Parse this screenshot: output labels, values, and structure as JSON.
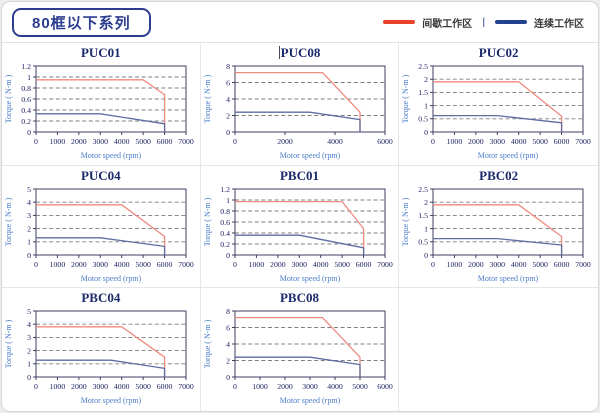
{
  "header": {
    "badge": "80框以下系列",
    "legend": {
      "intermittent": {
        "label": "间歇工作区",
        "color": "#e8432a"
      },
      "separator": "|",
      "continuous": {
        "label": "连续工作区",
        "color": "#24418f"
      }
    }
  },
  "chart_data": [
    {
      "type": "line",
      "title": "PUC01",
      "xlabel": "Motor speed (rpm)",
      "ylabel": "Torque ( N-m )",
      "xlim": [
        0,
        7000
      ],
      "ylim": [
        0,
        1.2
      ],
      "xticks": [
        0,
        1000,
        2000,
        3000,
        4000,
        5000,
        6000,
        7000
      ],
      "yticks": [
        0,
        0.2,
        0.4,
        0.6,
        0.8,
        1,
        1.2
      ],
      "grid": "horizontal-dashed",
      "legend_position": "none",
      "series": [
        {
          "name": "间歇工作区",
          "color": "#ef8a7e",
          "points": [
            [
              0,
              0.95
            ],
            [
              5000,
              0.95
            ],
            [
              6000,
              0.68
            ],
            [
              6000,
              0
            ]
          ]
        },
        {
          "name": "连续工作区",
          "color": "#5c6da2",
          "points": [
            [
              0,
              0.33
            ],
            [
              3000,
              0.33
            ],
            [
              6000,
              0.15
            ],
            [
              6000,
              0
            ]
          ]
        }
      ]
    },
    {
      "type": "line",
      "title": "PUC08",
      "text_cursor_before_title": true,
      "xlabel": "Motor speed (rpm)",
      "ylabel": "Torque ( N-m )",
      "xlim": [
        0,
        6000
      ],
      "ylim": [
        0,
        8
      ],
      "xticks": [
        0,
        2000,
        4000,
        6000
      ],
      "yticks": [
        0,
        2,
        4,
        6,
        8
      ],
      "grid": "horizontal-dashed",
      "legend_position": "none",
      "series": [
        {
          "name": "间歇工作区",
          "color": "#ef8a7e",
          "points": [
            [
              0,
              7.2
            ],
            [
              3500,
              7.2
            ],
            [
              5000,
              2.4
            ],
            [
              5000,
              0
            ]
          ]
        },
        {
          "name": "连续工作区",
          "color": "#5c6da2",
          "points": [
            [
              0,
              2.4
            ],
            [
              3000,
              2.4
            ],
            [
              5000,
              1.5
            ],
            [
              5000,
              0
            ]
          ]
        }
      ]
    },
    {
      "type": "line",
      "title": "PUC02",
      "xlabel": "Motor speed (rpm)",
      "ylabel": "Torque ( N-m )",
      "xlim": [
        0,
        7000
      ],
      "ylim": [
        0,
        2.5
      ],
      "xticks": [
        0,
        1000,
        2000,
        3000,
        4000,
        5000,
        6000,
        7000
      ],
      "yticks": [
        0,
        0.5,
        1,
        1.5,
        2,
        2.5
      ],
      "grid": "horizontal-dashed",
      "legend_position": "none",
      "series": [
        {
          "name": "间歇工作区",
          "color": "#ef8a7e",
          "points": [
            [
              0,
              1.9
            ],
            [
              4000,
              1.9
            ],
            [
              6000,
              0.6
            ],
            [
              6000,
              0
            ]
          ]
        },
        {
          "name": "连续工作区",
          "color": "#5c6da2",
          "points": [
            [
              0,
              0.62
            ],
            [
              3000,
              0.62
            ],
            [
              6000,
              0.35
            ],
            [
              6000,
              0
            ]
          ]
        }
      ]
    },
    {
      "type": "line",
      "title": "PUC04",
      "xlabel": "Motor speed (rpm)",
      "ylabel": "Torque ( N-m )",
      "xlim": [
        0,
        7000
      ],
      "ylim": [
        0,
        5
      ],
      "xticks": [
        0,
        1000,
        2000,
        3000,
        4000,
        5000,
        6000,
        7000
      ],
      "yticks": [
        0,
        1,
        2,
        3,
        4,
        5
      ],
      "grid": "horizontal-dashed",
      "legend_position": "none",
      "series": [
        {
          "name": "间歇工作区",
          "color": "#ef8a7e",
          "points": [
            [
              0,
              3.8
            ],
            [
              4000,
              3.8
            ],
            [
              6000,
              1.4
            ],
            [
              6000,
              0
            ]
          ]
        },
        {
          "name": "连续工作区",
          "color": "#5c6da2",
          "points": [
            [
              0,
              1.3
            ],
            [
              3000,
              1.3
            ],
            [
              6000,
              0.65
            ],
            [
              6000,
              0
            ]
          ]
        }
      ]
    },
    {
      "type": "line",
      "title": "PBC01",
      "xlabel": "Motor speed (rpm)",
      "ylabel": "Torque ( N-m )",
      "xlim": [
        0,
        7000
      ],
      "ylim": [
        0,
        1.2
      ],
      "xticks": [
        0,
        1000,
        2000,
        3000,
        4000,
        5000,
        6000,
        7000
      ],
      "yticks": [
        0,
        0.2,
        0.4,
        0.6,
        0.8,
        1,
        1.2
      ],
      "grid": "horizontal-dashed",
      "legend_position": "none",
      "series": [
        {
          "name": "间歇工作区",
          "color": "#ef8a7e",
          "points": [
            [
              0,
              0.97
            ],
            [
              5000,
              0.97
            ],
            [
              6000,
              0.48
            ],
            [
              6000,
              0
            ]
          ]
        },
        {
          "name": "连续工作区",
          "color": "#5c6da2",
          "points": [
            [
              0,
              0.36
            ],
            [
              3000,
              0.36
            ],
            [
              6000,
              0.13
            ],
            [
              6000,
              0
            ]
          ]
        }
      ]
    },
    {
      "type": "line",
      "title": "PBC02",
      "xlabel": "Motor speed (rpm)",
      "ylabel": "Torque ( N-m )",
      "xlim": [
        0,
        7000
      ],
      "ylim": [
        0,
        2.5
      ],
      "xticks": [
        0,
        1000,
        2000,
        3000,
        4000,
        5000,
        6000,
        7000
      ],
      "yticks": [
        0,
        0.5,
        1,
        1.5,
        2,
        2.5
      ],
      "grid": "horizontal-dashed",
      "legend_position": "none",
      "series": [
        {
          "name": "间歇工作区",
          "color": "#ef8a7e",
          "points": [
            [
              0,
              1.9
            ],
            [
              4000,
              1.9
            ],
            [
              6000,
              0.7
            ],
            [
              6000,
              0
            ]
          ]
        },
        {
          "name": "连续工作区",
          "color": "#5c6da2",
          "points": [
            [
              0,
              0.62
            ],
            [
              3000,
              0.62
            ],
            [
              6000,
              0.38
            ],
            [
              6000,
              0
            ]
          ]
        }
      ]
    },
    {
      "type": "line",
      "title": "PBC04",
      "xlabel": "Motor speed (rpm)",
      "ylabel": "Torque ( N-m )",
      "xlim": [
        0,
        7000
      ],
      "ylim": [
        0,
        5
      ],
      "xticks": [
        0,
        1000,
        2000,
        3000,
        4000,
        5000,
        6000,
        7000
      ],
      "yticks": [
        0,
        1,
        2,
        3,
        4,
        5
      ],
      "grid": "horizontal-dashed",
      "legend_position": "none",
      "series": [
        {
          "name": "间歇工作区",
          "color": "#ef8a7e",
          "points": [
            [
              0,
              3.8
            ],
            [
              4000,
              3.8
            ],
            [
              6000,
              1.5
            ],
            [
              6000,
              0
            ]
          ]
        },
        {
          "name": "连续工作区",
          "color": "#5c6da2",
          "points": [
            [
              0,
              1.27
            ],
            [
              3500,
              1.27
            ],
            [
              6000,
              0.65
            ],
            [
              6000,
              0
            ]
          ]
        }
      ]
    },
    {
      "type": "line",
      "title": "PBC08",
      "xlabel": "Motor speed (rpm)",
      "ylabel": "Torque ( N-m )",
      "xlim": [
        0,
        6000
      ],
      "ylim": [
        0,
        8
      ],
      "xticks": [
        0,
        1000,
        2000,
        3000,
        4000,
        5000,
        6000
      ],
      "yticks": [
        0,
        2,
        4,
        6,
        8
      ],
      "grid": "horizontal-dashed",
      "legend_position": "none",
      "series": [
        {
          "name": "间歇工作区",
          "color": "#ef8a7e",
          "points": [
            [
              0,
              7.2
            ],
            [
              3500,
              7.2
            ],
            [
              5000,
              2.4
            ],
            [
              5000,
              0
            ]
          ]
        },
        {
          "name": "连续工作区",
          "color": "#5c6da2",
          "points": [
            [
              0,
              2.4
            ],
            [
              3000,
              2.4
            ],
            [
              5000,
              1.5
            ],
            [
              5000,
              0
            ]
          ]
        }
      ]
    }
  ]
}
